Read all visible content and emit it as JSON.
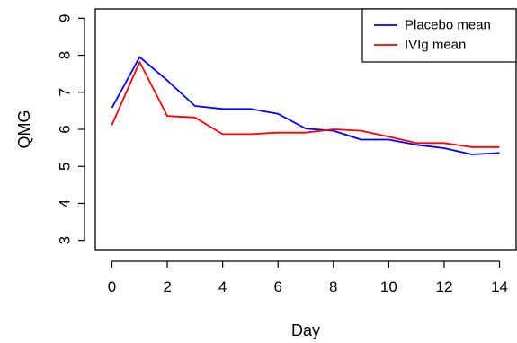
{
  "chart_data": {
    "type": "line",
    "title": "",
    "xlabel": "Day",
    "ylabel": "QMG",
    "xlim": [
      -0.6,
      14.6
    ],
    "ylim": [
      2.75,
      9.25
    ],
    "x_ticks": [
      0,
      2,
      4,
      6,
      8,
      10,
      12,
      14
    ],
    "y_ticks": [
      3,
      4,
      5,
      6,
      7,
      8,
      9
    ],
    "x": [
      0,
      1,
      2,
      3,
      4,
      5,
      6,
      7,
      8,
      9,
      10,
      11,
      12,
      13,
      14
    ],
    "grid": false,
    "legend_position": "top-right",
    "series": [
      {
        "name": "Placebo mean",
        "color": "#0000ff",
        "values": [
          6.58,
          7.95,
          7.32,
          6.63,
          6.55,
          6.55,
          6.42,
          6.02,
          5.96,
          5.72,
          5.72,
          5.58,
          5.49,
          5.32,
          5.36
        ]
      },
      {
        "name": "IVIg mean",
        "color": "#ff0000",
        "values": [
          6.12,
          7.82,
          6.36,
          6.32,
          5.87,
          5.87,
          5.91,
          5.91,
          6.0,
          5.96,
          5.8,
          5.63,
          5.63,
          5.52,
          5.52
        ]
      }
    ]
  }
}
